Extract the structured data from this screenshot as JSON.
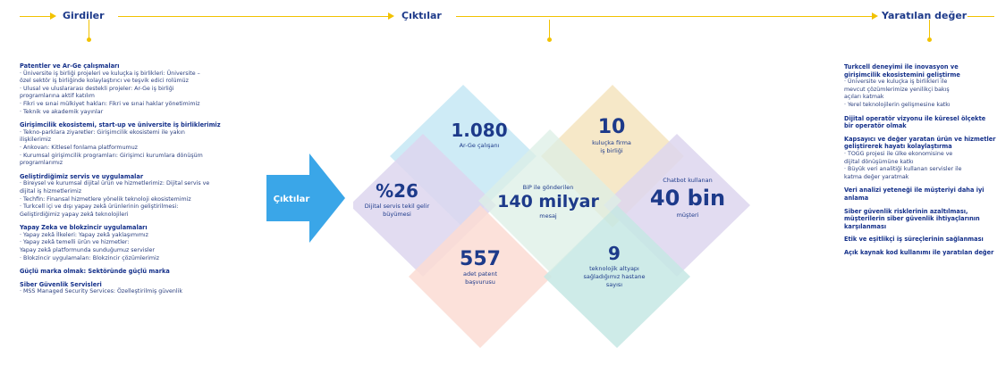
{
  "flow": {
    "inputs": "Girdiler",
    "outputs": "Çıktılar",
    "value_created": "Yaratılan değer"
  },
  "left": {
    "sections": [
      {
        "title": "Patentler ve Ar-Ge çalışmaları",
        "items": [
          "· Üniversite iş birliği projeleri ve kuluçka iş birlikleri: Üniversite –",
          "  özel sektör iş birliğinde kolaylaştırıcı ve teşvik edici rolümüz",
          "· Ulusal ve uluslararası destekli projeler: Ar-Ge iş birliği",
          "  programlarına aktif katılım",
          "· Fikri ve sınai mülkiyet hakları: Fikri ve sınai haklar yönetimimiz",
          "· Teknik ve akademik yayınlar"
        ]
      },
      {
        "title": "Girişimcilik ekosistemi, start-up ve üniversite iş birliklerimiz",
        "items": [
          "· Tekno-parklara ziyaretler: Girişimcilik ekosistemi ile yakın",
          "  ilişkilerimiz",
          "· Ankovan: Kitlesel fonlama platformumuz",
          "· Kurumsal girişimcilik programları: Girişimci kurumlara dönüşüm",
          "  programlarımız"
        ]
      },
      {
        "title": "Geliştirdiğimiz servis ve uygulamalar",
        "items": [
          "· Bireysel ve kurumsal dijital ürün ve hizmetlerimiz: Dijital servis ve",
          "  dijital iş hizmetlerimiz",
          "· Techfin: Finansal hizmetlere yönelik teknoloji ekosistemimiz",
          "· Turkcell içi ve dışı yapay zekâ ürünlerinin geliştirilmesi:",
          "  Geliştirdiğimiz yapay zekâ teknolojileri"
        ]
      },
      {
        "title": "Yapay Zeka ve blokzincir uygulamaları",
        "items": [
          "· Yapay zekâ İlkeleri: Yapay zekâ yaklaşımımız",
          "· Yapay zekâ temelli ürün ve hizmetler:",
          "  Yapay zekâ platformunda sunduğumuz servisler",
          "· Blokzincir uygulamaları: Blokzincir çözümlerimiz"
        ]
      },
      {
        "title": "Güçlü marka olmak: Sektöründe güçlü marka",
        "items": []
      },
      {
        "title": "Siber Güvenlik Servisleri",
        "items": [
          "· MSS Managed Security Services: Özelleştirilmiş güvenlik"
        ]
      }
    ]
  },
  "right": {
    "sections": [
      {
        "title": "Turkcell deneyimi ile inovasyon ve girişimcilik ekosistemini geliştirme",
        "items": [
          "· Üniversite ve kuluçka iş birlikleri ile",
          "  mevcut çözümlerimize yenilikçi bakış",
          "  açıları katmak",
          "· Yerel teknolojilerin gelişmesine katkı"
        ]
      },
      {
        "title": "Dijital operatör vizyonu ile küresel ölçekte bir operatör olmak",
        "items": []
      },
      {
        "title": "Kapsayıcı ve değer yaratan ürün ve hizmetler geliştirerek hayatı kolaylaştırma",
        "items": [
          "· TOGG projesi ile ülke ekonomisine ve",
          "  dijital dönüşümüne katkı",
          "· Büyük veri analitiği kullanan servisler ile",
          "  katma değer yaratmak"
        ]
      },
      {
        "title": "Veri analizi yeteneği ile müşteriyi daha iyi anlama",
        "items": []
      },
      {
        "title": "Siber güvenlik risklerinin azaltılması, müşterilerin siber güvenlik ihtiyaçlarının karşılanması",
        "items": []
      },
      {
        "title": "Etik ve eşitlikçi iş süreçlerinin sağlanması",
        "items": []
      },
      {
        "title": "Açık kaynak kod kullanımı ile yaratılan değer",
        "items": []
      }
    ]
  },
  "arrow_label": "Çıktılar",
  "diagram": {
    "colors": {
      "top": "#c9e9f5",
      "top_right": "#f5e6c2",
      "left": "#ddd6ef",
      "center": "#dcefe6",
      "right": "#ddd6ef",
      "bottom_left": "#fbdcd4",
      "bottom_right": "#c5e7e4",
      "accent": "#f2c200",
      "text": "#1d3a8a",
      "arrow": "#3aa6e8"
    },
    "cells": {
      "top": {
        "value": "1.080",
        "label1": "Ar-Ge çalışanı",
        "label2": ""
      },
      "top_right": {
        "value": "10",
        "label1": "kuluçka firma",
        "label2": "iş birliği"
      },
      "left": {
        "value": "%26",
        "label1": "Dijital servis tekil gelir",
        "label2": "büyümesi"
      },
      "center": {
        "value": "140 milyar",
        "label_top": "BiP ile gönderilen",
        "label_bottom": "mesaj"
      },
      "right": {
        "value": "40 bin",
        "label_top": "Chatbot kullanan",
        "label_bottom": "müşteri"
      },
      "bottom_left": {
        "value": "557",
        "label1": "adet patent",
        "label2": "başvurusu"
      },
      "bottom_right": {
        "value": "9",
        "label1": "teknolojik altyapı",
        "label2": "sağladığımız hastane",
        "label3": "sayısı"
      }
    }
  }
}
